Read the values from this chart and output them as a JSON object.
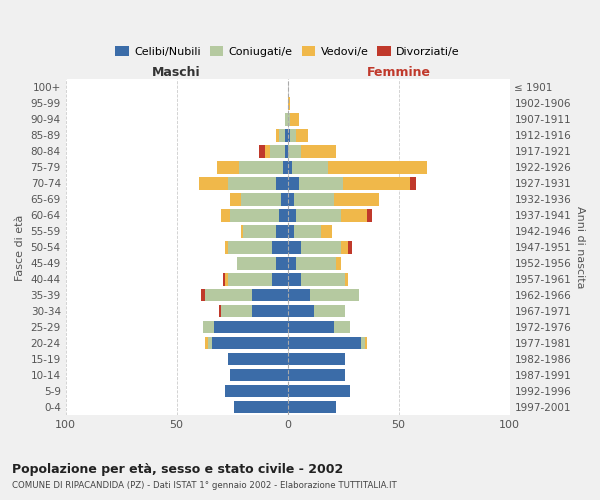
{
  "age_groups": [
    "0-4",
    "5-9",
    "10-14",
    "15-19",
    "20-24",
    "25-29",
    "30-34",
    "35-39",
    "40-44",
    "45-49",
    "50-54",
    "55-59",
    "60-64",
    "65-69",
    "70-74",
    "75-79",
    "80-84",
    "85-89",
    "90-94",
    "95-99",
    "100+"
  ],
  "birth_years": [
    "1997-2001",
    "1992-1996",
    "1987-1991",
    "1982-1986",
    "1977-1981",
    "1972-1976",
    "1967-1971",
    "1962-1966",
    "1957-1961",
    "1952-1956",
    "1947-1951",
    "1942-1946",
    "1937-1941",
    "1932-1936",
    "1927-1931",
    "1922-1926",
    "1917-1921",
    "1912-1916",
    "1907-1911",
    "1902-1906",
    "≤ 1901"
  ],
  "maschi": {
    "celibi": [
      24,
      28,
      26,
      27,
      34,
      33,
      16,
      16,
      7,
      5,
      7,
      5,
      4,
      3,
      5,
      2,
      1,
      1,
      0,
      0,
      0
    ],
    "coniugati": [
      0,
      0,
      0,
      0,
      2,
      5,
      14,
      21,
      20,
      18,
      20,
      15,
      22,
      18,
      22,
      20,
      7,
      3,
      1,
      0,
      0
    ],
    "vedovi": [
      0,
      0,
      0,
      0,
      1,
      0,
      0,
      0,
      1,
      0,
      1,
      1,
      4,
      5,
      13,
      10,
      2,
      1,
      0,
      0,
      0
    ],
    "divorziati": [
      0,
      0,
      0,
      0,
      0,
      0,
      1,
      2,
      1,
      0,
      0,
      0,
      0,
      0,
      0,
      0,
      3,
      0,
      0,
      0,
      0
    ]
  },
  "femmine": {
    "nubili": [
      22,
      28,
      26,
      26,
      33,
      21,
      12,
      10,
      6,
      4,
      6,
      3,
      4,
      3,
      5,
      2,
      0,
      1,
      0,
      0,
      0
    ],
    "coniugate": [
      0,
      0,
      0,
      0,
      2,
      7,
      14,
      22,
      20,
      18,
      18,
      12,
      20,
      18,
      20,
      16,
      6,
      3,
      1,
      0,
      0
    ],
    "vedove": [
      0,
      0,
      0,
      0,
      1,
      0,
      0,
      0,
      1,
      2,
      3,
      5,
      12,
      20,
      30,
      45,
      16,
      5,
      4,
      1,
      0
    ],
    "divorziate": [
      0,
      0,
      0,
      0,
      0,
      0,
      0,
      0,
      0,
      0,
      2,
      0,
      2,
      0,
      3,
      0,
      0,
      0,
      0,
      0,
      0
    ]
  },
  "color_celibi": "#3b6ca8",
  "color_coniugati": "#b5c9a0",
  "color_vedovi": "#f0b84a",
  "color_divorziati": "#c0392b",
  "title": "Popolazione per età, sesso e stato civile - 2002",
  "subtitle": "COMUNE DI RIPACANDIDA (PZ) - Dati ISTAT 1° gennaio 2002 - Elaborazione TUTTITALIA.IT",
  "xlabel_maschi": "Maschi",
  "xlabel_femmine": "Femmine",
  "ylabel": "Fasce di età",
  "ylabel_right": "Anni di nascita",
  "xlim": 100,
  "bg_color": "#f0f0f0",
  "plot_bg": "#ffffff",
  "grid_color": "#cccccc"
}
